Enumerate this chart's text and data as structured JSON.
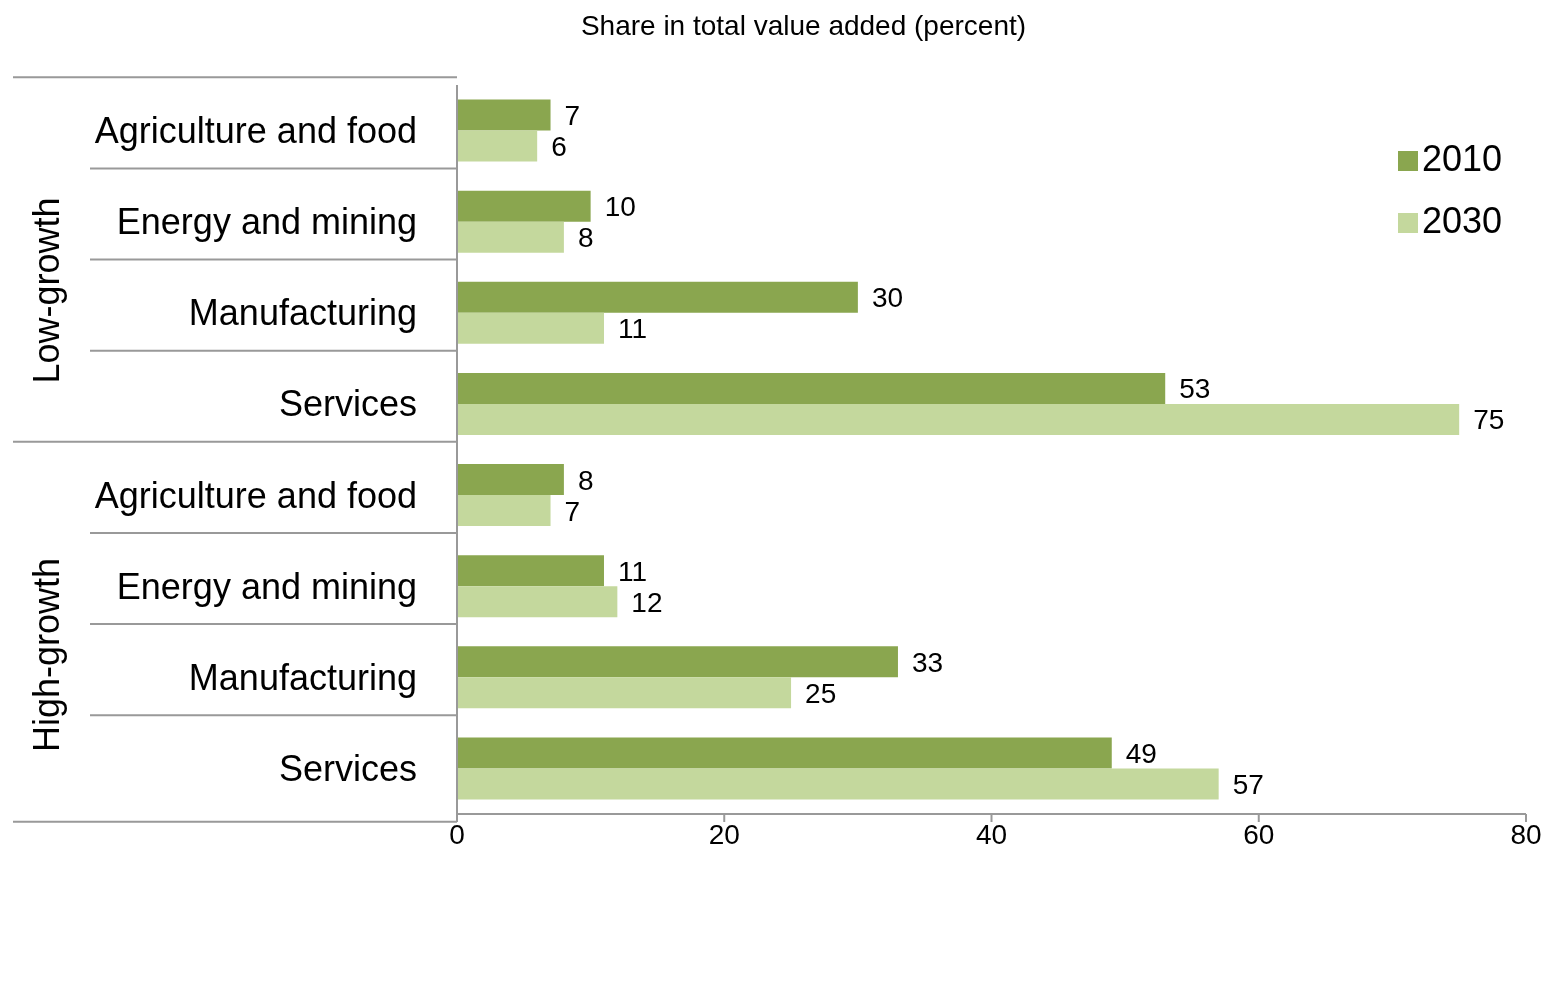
{
  "chart_data": {
    "type": "bar",
    "orientation": "horizontal",
    "title": "Share in total value added (percent)",
    "categories": [
      "Agriculture and food",
      "Energy and mining",
      "Manufacturing",
      "Services",
      "Agriculture and food",
      "Energy and mining",
      "Manufacturing",
      "Services"
    ],
    "series": [
      {
        "name": "2010",
        "color": "#8aa64f",
        "values": [
          7,
          10,
          30,
          53,
          8,
          11,
          33,
          49
        ]
      },
      {
        "name": "2030",
        "color": "#c4d89d",
        "values": [
          6,
          8,
          11,
          75,
          7,
          12,
          25,
          57
        ]
      }
    ],
    "annotations": [
      "Low-growth",
      "High-growth"
    ],
    "xlim": [
      0,
      80
    ],
    "xticks": [
      0,
      20,
      40,
      60,
      80
    ],
    "data_labels": true,
    "legend": "top right",
    "grid": false
  }
}
